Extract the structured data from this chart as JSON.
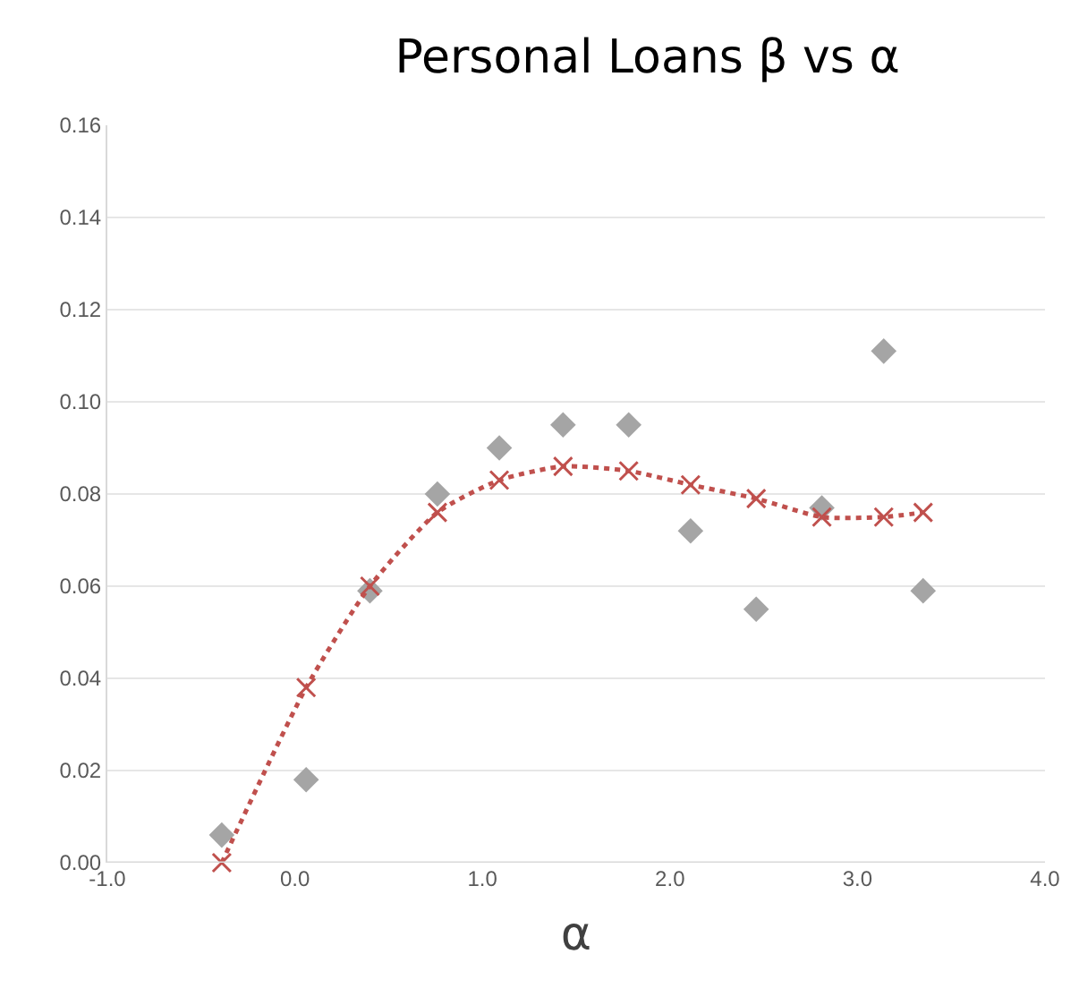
{
  "chart_data": {
    "type": "scatter",
    "title": "Personal Loans β vs α",
    "xlabel": "α",
    "xlim": [
      -1.0,
      4.0
    ],
    "xticks": [
      {
        "value": -1,
        "label": "-1.0"
      },
      {
        "value": 0,
        "label": "0.0"
      },
      {
        "value": 1,
        "label": "1.0"
      },
      {
        "value": 2,
        "label": "2.0"
      },
      {
        "value": 3,
        "label": "3.0"
      },
      {
        "value": 4,
        "label": "4.0"
      }
    ],
    "ylim": [
      0,
      0.16
    ],
    "yticks": [
      {
        "value": 0,
        "label": "0.00"
      },
      {
        "value": 0.02,
        "label": "0.02"
      },
      {
        "value": 0.04,
        "label": "0.04"
      },
      {
        "value": 0.06,
        "label": "0.06"
      },
      {
        "value": 0.08,
        "label": "0.08"
      },
      {
        "value": 0.1,
        "label": "0.10"
      },
      {
        "value": 0.12,
        "label": "0.12"
      },
      {
        "value": 0.14,
        "label": "0.14"
      },
      {
        "value": 0.16,
        "label": "0.16"
      }
    ],
    "grid": "y",
    "series": [
      {
        "color": "#a5a5a5",
        "marker": "diamond",
        "x": [
          -0.39,
          0.06,
          0.4,
          0.76,
          1.09,
          1.43,
          1.78,
          2.11,
          2.46,
          2.81,
          3.14,
          3.35
        ],
        "values": [
          0.006,
          0.018,
          0.059,
          0.08,
          0.09,
          0.095,
          0.095,
          0.072,
          0.055,
          0.077,
          0.111,
          0.059
        ]
      },
      {
        "type": "line",
        "color": "#c0504d",
        "marker": "cross",
        "line_style": "dotted",
        "x": [
          -0.39,
          0.06,
          0.4,
          0.76,
          1.09,
          1.43,
          1.78,
          2.11,
          2.46,
          2.81,
          3.14,
          3.35
        ],
        "values": [
          0.0,
          0.038,
          0.06,
          0.076,
          0.083,
          0.086,
          0.085,
          0.082,
          0.079,
          0.075,
          0.075,
          0.076
        ]
      }
    ]
  }
}
